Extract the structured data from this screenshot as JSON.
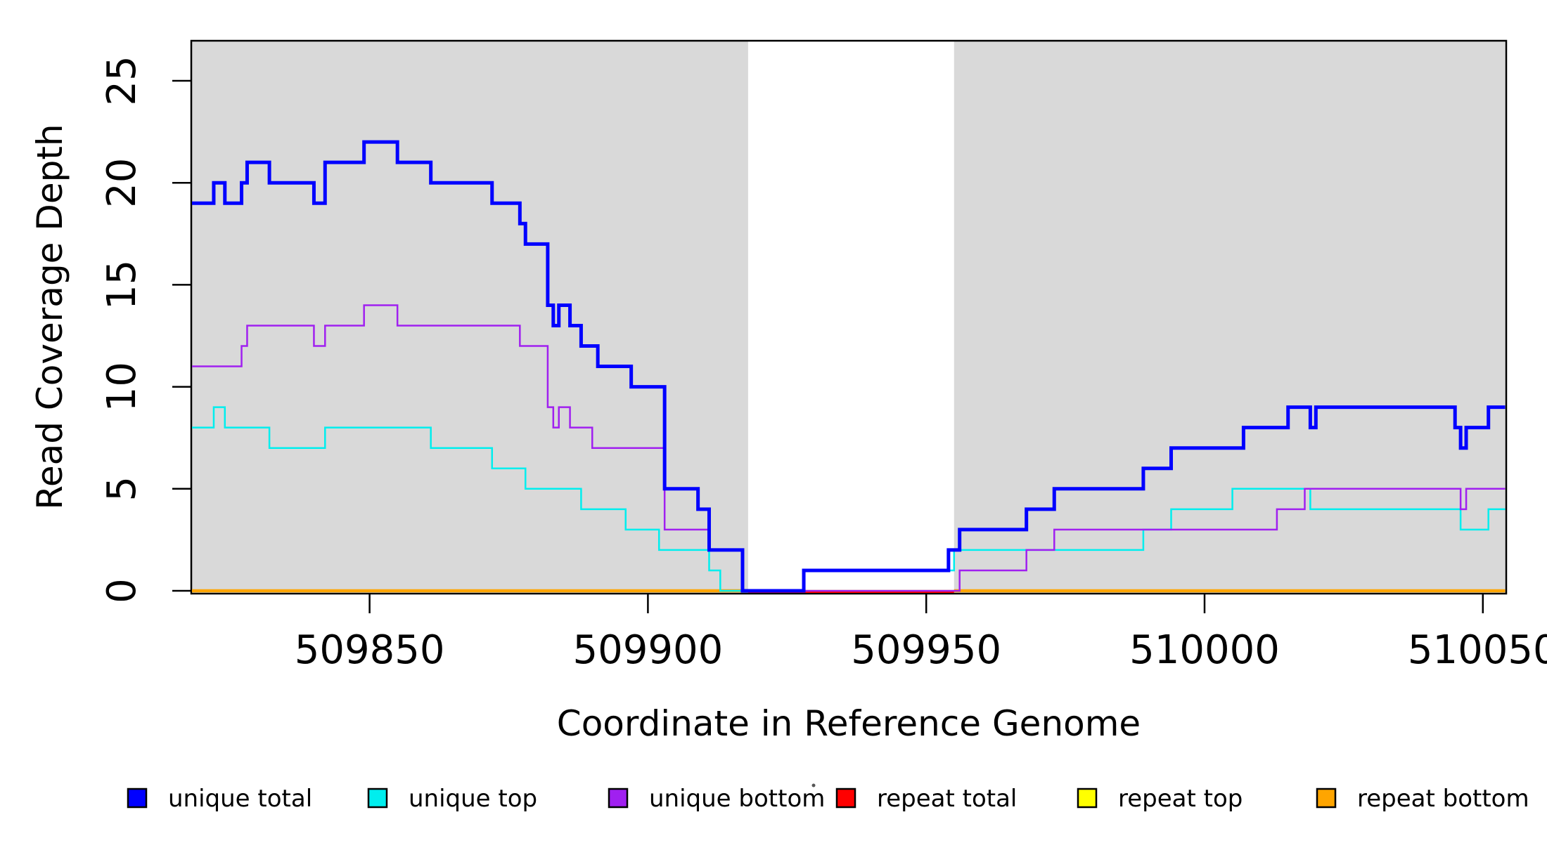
{
  "chart_data": {
    "type": "line",
    "subtype": "step",
    "title": "",
    "xlabel": "Coordinate in Reference Genome",
    "ylabel": "Read Coverage Depth",
    "xlim": [
      509818,
      510054
    ],
    "ylim": [
      0,
      27
    ],
    "x_ticks": [
      509850,
      509900,
      509950,
      510000,
      510050
    ],
    "x_tick_labels": [
      "509850",
      "509900",
      "509950",
      "510000",
      "510050"
    ],
    "y_ticks": [
      0,
      5,
      10,
      15,
      20,
      25
    ],
    "y_tick_labels": [
      "0",
      "5",
      "10",
      "15",
      "20",
      "25"
    ],
    "grid": false,
    "background_color": "#ffffff",
    "shaded_region_color": "#d9d9d9",
    "shaded_regions": [
      [
        509818,
        509918
      ],
      [
        509955,
        510054
      ]
    ],
    "gap_region": [
      509918,
      509955
    ],
    "legend_position": "bottom",
    "series": [
      {
        "name": "repeat bottom",
        "color": "#FFA500",
        "width": 4.5,
        "segments": [
          [
            [
              509817,
              0
            ],
            [
              509918,
              0
            ]
          ],
          [
            [
              509955,
              0
            ],
            [
              510054,
              0
            ]
          ]
        ]
      },
      {
        "name": "repeat top",
        "color": "#FFFF00",
        "width": 2.5,
        "segments": [
          [
            [
              509918,
              0
            ],
            [
              509955,
              0
            ]
          ]
        ]
      },
      {
        "name": "repeat total",
        "color": "#FF0000",
        "width": 2.5,
        "y_offset": 2,
        "segments": [
          [
            [
              509918,
              0
            ],
            [
              509955,
              0
            ]
          ]
        ]
      },
      {
        "name": "unique top",
        "color": "#00EientE",
        "width": 2.5,
        "segments": []
      },
      {
        "name": "unique bottom",
        "color": "#A020F0",
        "width": 2.5,
        "segments": []
      },
      {
        "name": "unique total",
        "color": "#0000FF",
        "width": 5,
        "segments": []
      }
    ],
    "steps": {
      "unique_total": [
        [
          509817,
          19
        ],
        [
          509822,
          20
        ],
        [
          509824,
          19
        ],
        [
          509827,
          20
        ],
        [
          509828,
          21
        ],
        [
          509832,
          20
        ],
        [
          509840,
          19
        ],
        [
          509842,
          21
        ],
        [
          509849,
          22
        ],
        [
          509855,
          21
        ],
        [
          509861,
          20
        ],
        [
          509872,
          19
        ],
        [
          509877,
          18
        ],
        [
          509878,
          17
        ],
        [
          509882,
          14
        ],
        [
          509883,
          13
        ],
        [
          509884,
          14
        ],
        [
          509886,
          13
        ],
        [
          509888,
          12
        ],
        [
          509891,
          11
        ],
        [
          509897,
          10
        ],
        [
          509903,
          5
        ],
        [
          509909,
          4
        ],
        [
          509911,
          2
        ],
        [
          509917,
          0
        ],
        [
          509928,
          1
        ],
        [
          509954,
          2
        ],
        [
          509956,
          3
        ],
        [
          509968,
          4
        ],
        [
          509973,
          5
        ],
        [
          509989,
          6
        ],
        [
          509994,
          7
        ],
        [
          510007,
          8
        ],
        [
          510015,
          9
        ],
        [
          510019,
          8
        ],
        [
          510020,
          9
        ],
        [
          510045,
          8
        ],
        [
          510046,
          7
        ],
        [
          510047,
          8
        ],
        [
          510051,
          9
        ],
        [
          510054,
          9
        ]
      ],
      "unique_top": [
        [
          509817,
          8
        ],
        [
          509822,
          9
        ],
        [
          509824,
          8
        ],
        [
          509832,
          7
        ],
        [
          509842,
          8
        ],
        [
          509861,
          7
        ],
        [
          509872,
          6
        ],
        [
          509878,
          5
        ],
        [
          509888,
          4
        ],
        [
          509896,
          3
        ],
        [
          509902,
          2
        ],
        [
          509911,
          1
        ],
        [
          509913,
          0
        ],
        [
          509928,
          1
        ],
        [
          509955,
          2
        ],
        [
          509989,
          3
        ],
        [
          509994,
          4
        ],
        [
          510005,
          5
        ],
        [
          510019,
          4
        ],
        [
          510046,
          3
        ],
        [
          510051,
          4
        ],
        [
          510054,
          4
        ]
      ],
      "unique_bottom": [
        [
          509817,
          11
        ],
        [
          509827,
          12
        ],
        [
          509828,
          13
        ],
        [
          509840,
          12
        ],
        [
          509842,
          13
        ],
        [
          509849,
          14
        ],
        [
          509855,
          13
        ],
        [
          509877,
          12
        ],
        [
          509882,
          9
        ],
        [
          509883,
          8
        ],
        [
          509884,
          9
        ],
        [
          509886,
          8
        ],
        [
          509890,
          7
        ],
        [
          509903,
          3
        ],
        [
          509911,
          2
        ],
        [
          509917,
          0
        ],
        [
          509956,
          1
        ],
        [
          509968,
          2
        ],
        [
          509973,
          3
        ],
        [
          510013,
          4
        ],
        [
          510018,
          5
        ],
        [
          510046,
          4
        ],
        [
          510047,
          5
        ],
        [
          510054,
          5
        ]
      ]
    },
    "legend": [
      {
        "label": "unique total",
        "color": "#0000FF"
      },
      {
        "label": "unique top",
        "color": "#00EEEE"
      },
      {
        "label": "unique bottom",
        "color": "#A020F0"
      },
      {
        "label": "repeat total",
        "color": "#FF0000"
      },
      {
        "label": "repeat top",
        "color": "#FFFF00"
      },
      {
        "label": "repeat bottom",
        "color": "#FFA500"
      }
    ]
  }
}
